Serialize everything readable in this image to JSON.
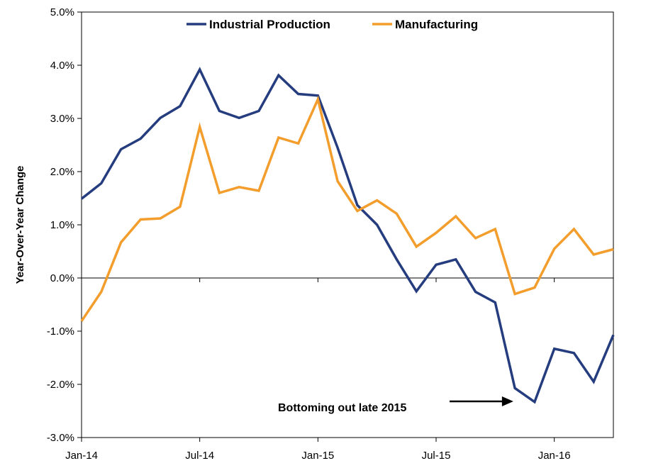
{
  "chart_data": {
    "type": "line",
    "title": "",
    "xlabel": "",
    "ylabel": "Year-Over-Year Change",
    "ylim": [
      -3.0,
      5.0
    ],
    "yticks": [
      -3.0,
      -2.0,
      -1.0,
      0.0,
      1.0,
      2.0,
      3.0,
      4.0,
      5.0
    ],
    "ytick_labels": [
      "-3.0%",
      "-2.0%",
      "-1.0%",
      "0.0%",
      "1.0%",
      "2.0%",
      "3.0%",
      "4.0%",
      "5.0%"
    ],
    "x": [
      "Jan-14",
      "Feb-14",
      "Mar-14",
      "Apr-14",
      "May-14",
      "Jun-14",
      "Jul-14",
      "Aug-14",
      "Sep-14",
      "Oct-14",
      "Nov-14",
      "Dec-14",
      "Jan-15",
      "Feb-15",
      "Mar-15",
      "Apr-15",
      "May-15",
      "Jun-15",
      "Jul-15",
      "Aug-15",
      "Sep-15",
      "Oct-15",
      "Nov-15",
      "Dec-15",
      "Jan-16",
      "Feb-16",
      "Mar-16",
      "Apr-16"
    ],
    "xtick_labels": [
      "Jan-14",
      "Jul-14",
      "Jan-15",
      "Jul-15",
      "Jan-16"
    ],
    "grid": false,
    "legend_position": "top",
    "series": [
      {
        "name": "Industrial Production",
        "color": "#253d7e",
        "values": [
          1.49,
          1.78,
          2.42,
          2.62,
          3.01,
          3.23,
          3.92,
          3.14,
          3.01,
          3.14,
          3.81,
          3.46,
          3.43,
          2.45,
          1.37,
          1.0,
          0.35,
          -0.25,
          0.25,
          0.35,
          -0.26,
          -0.46,
          -2.07,
          -2.33,
          -1.33,
          -1.41,
          -1.95,
          -1.07
        ]
      },
      {
        "name": "Manufacturing",
        "color": "#f29d2c",
        "values": [
          -0.81,
          -0.26,
          0.67,
          1.1,
          1.12,
          1.34,
          2.84,
          1.6,
          1.71,
          1.64,
          2.64,
          2.53,
          3.36,
          1.82,
          1.26,
          1.46,
          1.21,
          0.59,
          0.85,
          1.16,
          0.75,
          0.92,
          -0.3,
          -0.18,
          0.55,
          0.92,
          0.44,
          0.54
        ]
      }
    ],
    "annotations": [
      {
        "text": "Bottoming out late 2015",
        "target_x": "Dec-15"
      }
    ]
  }
}
